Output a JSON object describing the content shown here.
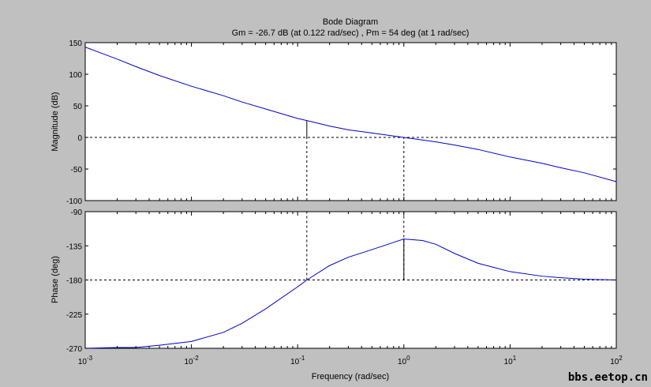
{
  "chart_data": [
    {
      "type": "line",
      "panel": "magnitude",
      "title": "Bode Diagram",
      "subtitle": "Gm = -26.7 dB (at 0.122 rad/sec) ,  Pm = 54 deg (at 1 rad/sec)",
      "ylabel": "Magnitude (dB)",
      "xscale": "log",
      "xlim": [
        0.001,
        100
      ],
      "ylim": [
        -100,
        150
      ],
      "yticks": [
        -100,
        -50,
        0,
        50,
        100,
        150
      ],
      "ytick_labels": [
        "-100",
        "-50",
        "0",
        "50",
        "100",
        "150"
      ],
      "grid": false,
      "series": [
        {
          "color": "#0000c8",
          "x": [
            0.001,
            0.002,
            0.003,
            0.005,
            0.01,
            0.02,
            0.03,
            0.05,
            0.1,
            0.122,
            0.2,
            0.3,
            0.5,
            1,
            2,
            3,
            5,
            10,
            20,
            30,
            50,
            100
          ],
          "y": [
            143,
            124,
            112,
            98,
            81,
            66,
            56,
            45,
            30,
            26.7,
            18,
            12,
            7,
            0,
            -7,
            -12,
            -19,
            -31,
            -41,
            -48,
            -56,
            -70
          ]
        }
      ],
      "reference_lines": [
        {
          "kind": "horizontal",
          "y": 0,
          "style": "dashed"
        },
        {
          "kind": "vertical",
          "x": 0.122,
          "style": "dashed",
          "from": -100,
          "to": 0
        },
        {
          "kind": "vertical",
          "x": 1,
          "style": "dashed",
          "from": -100,
          "to": 0
        },
        {
          "kind": "marker",
          "x": 0.122,
          "from": 0,
          "to": 26.7,
          "style": "solid"
        }
      ]
    },
    {
      "type": "line",
      "panel": "phase",
      "ylabel": "Phase (deg)",
      "xlabel": "Frequency  (rad/sec)",
      "xscale": "log",
      "xlim": [
        0.001,
        100
      ],
      "ylim": [
        -270,
        -90
      ],
      "yticks": [
        -270,
        -225,
        -180,
        -135,
        -90
      ],
      "ytick_labels": [
        "-270",
        "-225",
        "-180",
        "-135",
        "-90"
      ],
      "xtick_base": "10",
      "xtick_exponents": [
        "-3",
        "-2",
        "-1",
        "0",
        "1",
        "2"
      ],
      "grid": false,
      "series": [
        {
          "color": "#0000c8",
          "x": [
            0.001,
            0.002,
            0.003,
            0.005,
            0.01,
            0.02,
            0.03,
            0.05,
            0.1,
            0.122,
            0.2,
            0.3,
            0.5,
            1,
            1.5,
            2,
            3,
            5,
            10,
            20,
            30,
            50,
            100
          ],
          "y": [
            -270,
            -269,
            -269,
            -266,
            -261,
            -249,
            -237,
            -218,
            -189,
            -180,
            -161,
            -150,
            -140,
            -126,
            -128,
            -133,
            -145,
            -158,
            -169,
            -175,
            -177,
            -179,
            -180
          ]
        }
      ],
      "reference_lines": [
        {
          "kind": "horizontal",
          "y": -180,
          "style": "dashed"
        },
        {
          "kind": "vertical",
          "x": 0.122,
          "style": "dashed",
          "from": -180,
          "to": -90
        },
        {
          "kind": "vertical",
          "x": 1,
          "style": "dashed",
          "from": -180,
          "to": -90
        },
        {
          "kind": "marker",
          "x": 1,
          "from": -180,
          "to": -126,
          "style": "solid"
        }
      ]
    }
  ],
  "watermark": "bbs.eetop.cn"
}
